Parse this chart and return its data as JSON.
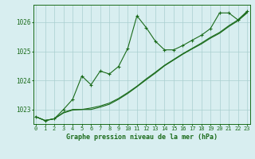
{
  "title": "Graphe pression niveau de la mer (hPa)",
  "background_color": "#d8eef0",
  "line_color": "#1a6b1a",
  "grid_color": "#aacfcf",
  "ylim": [
    1022.5,
    1026.6
  ],
  "xlim": [
    -0.3,
    23.3
  ],
  "yticks": [
    1023,
    1024,
    1025,
    1026
  ],
  "xticks": [
    0,
    1,
    2,
    3,
    4,
    5,
    6,
    7,
    8,
    9,
    10,
    11,
    12,
    13,
    14,
    15,
    16,
    17,
    18,
    19,
    20,
    21,
    22,
    23
  ],
  "series": [
    {
      "x": [
        0,
        1,
        2,
        3,
        4,
        5,
        6,
        7,
        8,
        9,
        10,
        11,
        12,
        13,
        14,
        15,
        16,
        17,
        18,
        19,
        20,
        21,
        22,
        23
      ],
      "y": [
        1022.75,
        1022.62,
        1022.68,
        1023.0,
        1023.35,
        1024.15,
        1023.85,
        1024.32,
        1024.22,
        1024.48,
        1025.1,
        1026.22,
        1025.82,
        1025.35,
        1025.05,
        1025.05,
        1025.2,
        1025.38,
        1025.55,
        1025.78,
        1026.32,
        1026.32,
        1026.08,
        1026.38
      ],
      "marker": true
    },
    {
      "x": [
        0,
        1,
        2,
        3,
        4,
        5,
        6,
        7,
        8,
        9,
        10,
        11,
        12,
        13,
        14,
        15,
        16,
        17,
        18,
        19,
        20,
        21,
        22,
        23
      ],
      "y": [
        1022.75,
        1022.62,
        1022.68,
        1022.9,
        1023.0,
        1023.0,
        1023.05,
        1023.12,
        1023.22,
        1023.38,
        1023.58,
        1023.8,
        1024.05,
        1024.28,
        1024.52,
        1024.72,
        1024.92,
        1025.1,
        1025.28,
        1025.48,
        1025.65,
        1025.88,
        1026.08,
        1026.35
      ],
      "marker": false
    },
    {
      "x": [
        0,
        1,
        2,
        3,
        4,
        5,
        6,
        7,
        8,
        9,
        10,
        11,
        12,
        13,
        14,
        15,
        16,
        17,
        18,
        19,
        20,
        21,
        22,
        23
      ],
      "y": [
        1022.75,
        1022.62,
        1022.68,
        1022.88,
        1022.98,
        1023.0,
        1023.0,
        1023.08,
        1023.18,
        1023.35,
        1023.55,
        1023.78,
        1024.02,
        1024.25,
        1024.5,
        1024.7,
        1024.9,
        1025.08,
        1025.25,
        1025.45,
        1025.62,
        1025.85,
        1026.05,
        1026.32
      ],
      "marker": false
    }
  ]
}
